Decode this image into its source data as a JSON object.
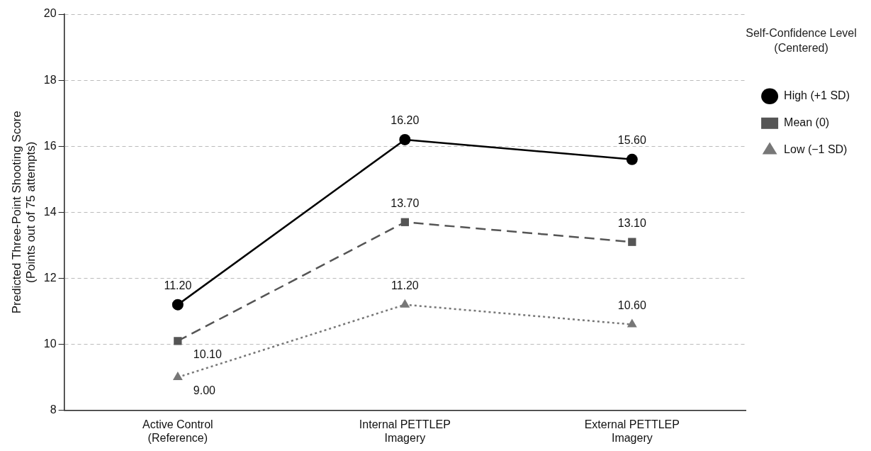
{
  "chart_data": {
    "type": "line",
    "ylabel": "Predicted Three-Point Shooting Score\n(Points out of 75 attempts)",
    "legend_title": "Self-Confidence Level\n(Centered)",
    "categories": [
      "Active Control\n(Reference)",
      "Internal PETTLEP\nImagery",
      "External PETTLEP\nImagery"
    ],
    "series": [
      {
        "name": "High (+1 SD)",
        "color": "#000000",
        "values": [
          11.2,
          16.2,
          15.6
        ],
        "value_labels": [
          "11.20",
          "16.20",
          "15.60"
        ],
        "marker": "circle",
        "line_style": "solid"
      },
      {
        "name": "Mean (0)",
        "color": "#555555",
        "values": [
          10.1,
          13.7,
          13.1
        ],
        "value_labels": [
          "10.10",
          "13.70",
          "13.10"
        ],
        "marker": "square",
        "line_style": "dashed"
      },
      {
        "name": "Low (−1 SD)",
        "color": "#777777",
        "values": [
          9.0,
          11.2,
          10.6
        ],
        "value_labels": [
          "9.00",
          "11.20",
          "10.60"
        ],
        "marker": "triangle",
        "line_style": "dotted"
      }
    ],
    "ylim": [
      8,
      20
    ],
    "yticks": [
      8,
      10,
      12,
      14,
      16,
      18,
      20
    ],
    "grid": "y",
    "legend": "right"
  }
}
